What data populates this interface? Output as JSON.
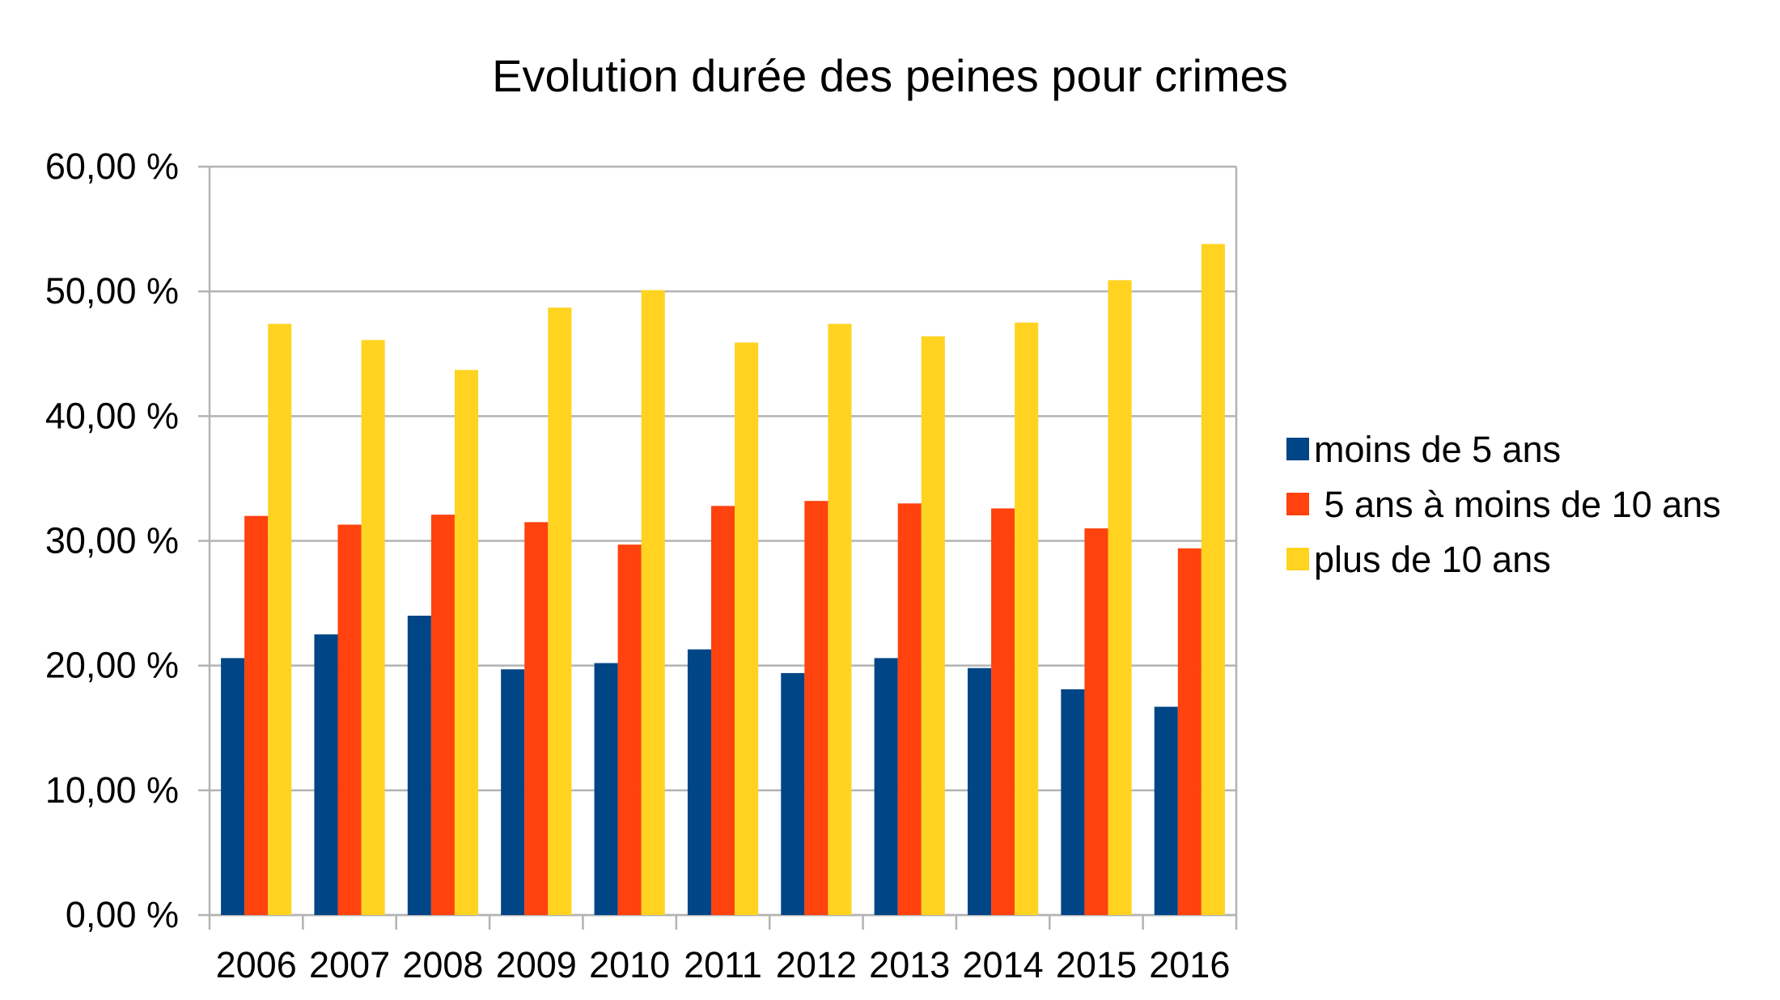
{
  "chart_data": {
    "type": "bar",
    "title": "Evolution durée des peines pour crimes",
    "xlabel": "",
    "ylabel": "",
    "categories": [
      "2006",
      "2007",
      "2008",
      "2009",
      "2010",
      "2011",
      "2012",
      "2013",
      "2014",
      "2015",
      "2016"
    ],
    "ylim": [
      0,
      60
    ],
    "yticks": [
      0,
      10,
      20,
      30,
      40,
      50,
      60
    ],
    "ytick_labels": [
      "0,00 %",
      "10,00 %",
      "20,00 %",
      "30,00 %",
      "40,00 %",
      "50,00 %",
      "60,00 %"
    ],
    "grid": true,
    "legend_position": "right",
    "series": [
      {
        "name": "moins de 5 ans",
        "color": "#004586",
        "values": [
          20.6,
          22.5,
          24.0,
          19.7,
          20.2,
          21.3,
          19.4,
          20.6,
          19.8,
          18.1,
          16.7
        ]
      },
      {
        "name": " 5 ans à moins de 10 ans",
        "color": "#ff420e",
        "values": [
          32.0,
          31.3,
          32.1,
          31.5,
          29.7,
          32.8,
          33.2,
          33.0,
          32.6,
          31.0,
          29.4
        ]
      },
      {
        "name": "plus de 10 ans",
        "color": "#ffd320",
        "values": [
          47.4,
          46.1,
          43.7,
          48.7,
          50.1,
          45.9,
          47.4,
          46.4,
          47.5,
          50.9,
          53.8
        ]
      }
    ]
  }
}
